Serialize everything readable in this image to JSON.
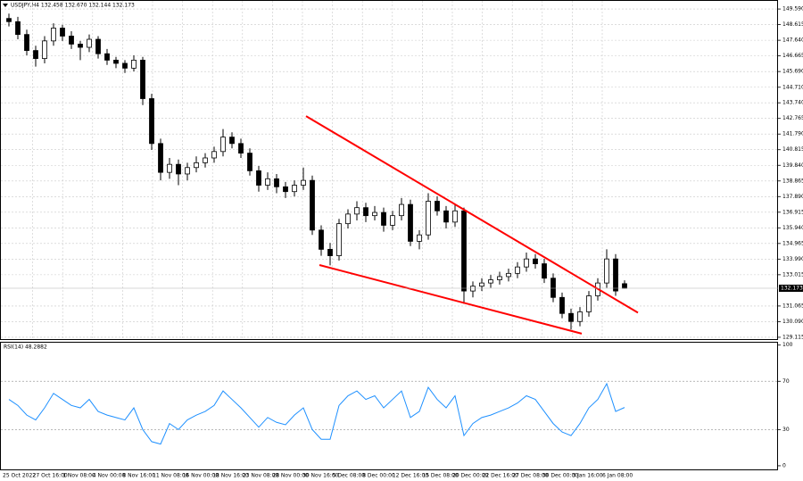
{
  "chart_data": {
    "type": "candlestick",
    "title": "USDJPY,H4 132.458 132.670 132.144 132.173",
    "open": [
      149.0,
      148.8,
      148.0,
      147.0,
      146.5,
      147.6,
      148.4,
      147.9,
      147.4,
      147.2,
      147.7,
      146.8,
      146.4,
      146.2,
      145.9,
      146.4,
      144.0,
      141.2,
      139.4,
      139.9,
      139.3,
      139.7,
      140.0,
      140.3,
      140.7,
      141.6,
      141.2,
      140.6,
      139.5,
      138.6,
      139.0,
      138.5,
      138.2,
      138.6,
      138.9,
      135.8,
      134.6,
      134.2,
      136.2,
      136.8,
      137.2,
      136.7,
      136.9,
      136.1,
      136.7,
      137.4,
      135.1,
      135.5,
      137.6,
      137.0,
      136.3,
      137.0,
      132.0,
      132.3,
      132.5,
      132.7,
      132.9,
      133.1,
      133.5,
      134.0,
      133.7,
      132.8,
      131.6,
      130.6,
      130.1,
      130.7,
      131.7,
      132.5,
      134.0,
      132.458
    ],
    "high": [
      149.3,
      149.1,
      148.3,
      147.3,
      147.9,
      148.7,
      148.6,
      148.2,
      147.6,
      148.0,
      147.9,
      147.1,
      146.6,
      146.4,
      146.7,
      146.6,
      144.3,
      141.5,
      140.3,
      140.2,
      140.0,
      140.4,
      140.6,
      141.0,
      142.1,
      141.9,
      141.5,
      140.9,
      139.8,
      139.4,
      139.3,
      138.8,
      138.9,
      139.7,
      139.2,
      136.1,
      135.0,
      136.5,
      137.1,
      137.6,
      137.5,
      137.3,
      137.2,
      137.0,
      137.8,
      137.7,
      135.8,
      138.1,
      137.9,
      137.3,
      137.4,
      137.2,
      132.6,
      132.8,
      133.0,
      133.2,
      133.4,
      133.8,
      134.4,
      134.3,
      134.0,
      133.1,
      131.9,
      130.9,
      131.0,
      132.0,
      132.8,
      134.6,
      134.3,
      132.67
    ],
    "low": [
      148.5,
      147.7,
      146.7,
      146.0,
      146.2,
      147.3,
      147.6,
      147.1,
      146.4,
      146.9,
      146.5,
      146.1,
      145.9,
      145.6,
      145.7,
      143.6,
      140.8,
      138.9,
      139.0,
      138.6,
      138.9,
      139.4,
      139.7,
      140.0,
      140.4,
      140.9,
      140.3,
      139.2,
      138.2,
      138.3,
      138.1,
      137.8,
      137.9,
      138.3,
      135.5,
      134.2,
      133.6,
      133.9,
      135.9,
      136.4,
      136.3,
      136.4,
      135.7,
      135.8,
      136.4,
      134.8,
      134.6,
      135.2,
      136.7,
      135.9,
      136.0,
      131.2,
      131.6,
      132.0,
      132.2,
      132.4,
      132.6,
      132.8,
      133.2,
      133.4,
      132.5,
      131.3,
      130.3,
      129.6,
      129.8,
      130.4,
      131.4,
      132.2,
      131.7,
      132.144
    ],
    "close": [
      148.8,
      148.0,
      147.0,
      146.5,
      147.6,
      148.4,
      147.9,
      147.4,
      147.2,
      147.7,
      146.8,
      146.4,
      146.2,
      145.9,
      146.4,
      144.0,
      141.2,
      139.4,
      139.9,
      139.3,
      139.7,
      140.0,
      140.3,
      140.7,
      141.6,
      141.2,
      140.6,
      139.5,
      138.6,
      139.0,
      138.5,
      138.2,
      138.6,
      138.9,
      135.8,
      134.6,
      134.2,
      136.2,
      136.8,
      137.2,
      136.7,
      136.9,
      136.1,
      136.7,
      137.4,
      135.1,
      135.5,
      137.6,
      137.0,
      136.3,
      137.0,
      132.0,
      132.3,
      132.5,
      132.7,
      132.9,
      133.1,
      133.5,
      134.0,
      133.7,
      132.8,
      131.6,
      130.6,
      130.1,
      130.7,
      131.7,
      132.5,
      134.0,
      132.0,
      132.173
    ],
    "ylim": [
      129.0,
      150.04
    ],
    "yticks": [
      {
        "value": 149.59,
        "label": "149.590"
      },
      148.615,
      {
        "value": 147.64,
        "label": "147.640"
      },
      146.665,
      {
        "value": 145.69,
        "label": "145.690"
      },
      {
        "value": 144.71,
        "label": "144.710"
      },
      {
        "value": 143.74,
        "label": "143.740"
      },
      142.765,
      {
        "value": 141.79,
        "label": "141.790"
      },
      140.815,
      {
        "value": 139.84,
        "label": "139.840"
      },
      138.865,
      {
        "value": 137.89,
        "label": "137.890"
      },
      136.915,
      {
        "value": 135.94,
        "label": "135.940"
      },
      134.965,
      {
        "value": 133.99,
        "label": "133.990"
      },
      133.015,
      131.065,
      {
        "value": 130.09,
        "label": "130.090"
      },
      129.115
    ],
    "last_price": 132.173,
    "x_labels": [
      "25 Oct 2022",
      "27 Oct 16:00",
      "1 Nov 08:00",
      "4 Nov 00:00",
      "8 Nov 16:00",
      "11 Nov 08:00",
      "16 Nov 00:00",
      "18 Nov 16:00",
      "23 Nov 08:00",
      "28 Nov 00:00",
      "30 Nov 16:00",
      "5 Dec 08:00",
      "8 Dec 00:00",
      "12 Dec 16:00",
      "15 Dec 08:00",
      "20 Dec 00:00",
      "22 Dec 16:00",
      "27 Dec 08:00",
      "30 Dec 00:00",
      "3 Jan 16:00",
      "6 Jan 08:00"
    ],
    "grid": true,
    "trendlines": [
      {
        "color": "#ff0000",
        "x": [
          33.3,
          70.5
        ],
        "y": [
          142.91,
          130.65
        ]
      },
      {
        "color": "#ff0000",
        "x": [
          34.8,
          64.2
        ],
        "y": [
          133.62,
          129.34
        ]
      }
    ],
    "indicator": {
      "title": "RSI(14) 48.2882",
      "color": "#1e90ff",
      "values": [
        55,
        50,
        42,
        38,
        48,
        60,
        55,
        50,
        48,
        55,
        45,
        42,
        40,
        38,
        48,
        30,
        20,
        18,
        35,
        30,
        38,
        42,
        45,
        50,
        62,
        55,
        48,
        40,
        32,
        40,
        36,
        34,
        42,
        48,
        30,
        22,
        22,
        50,
        58,
        62,
        55,
        58,
        48,
        55,
        62,
        40,
        45,
        65,
        55,
        48,
        58,
        25,
        35,
        40,
        42,
        45,
        48,
        52,
        58,
        55,
        45,
        35,
        28,
        25,
        35,
        48,
        55,
        68,
        45,
        48.2882
      ],
      "ylim": [
        -3,
        102
      ],
      "yticks": [
        100,
        70,
        30,
        0
      ],
      "levels": [
        70,
        30
      ]
    }
  }
}
